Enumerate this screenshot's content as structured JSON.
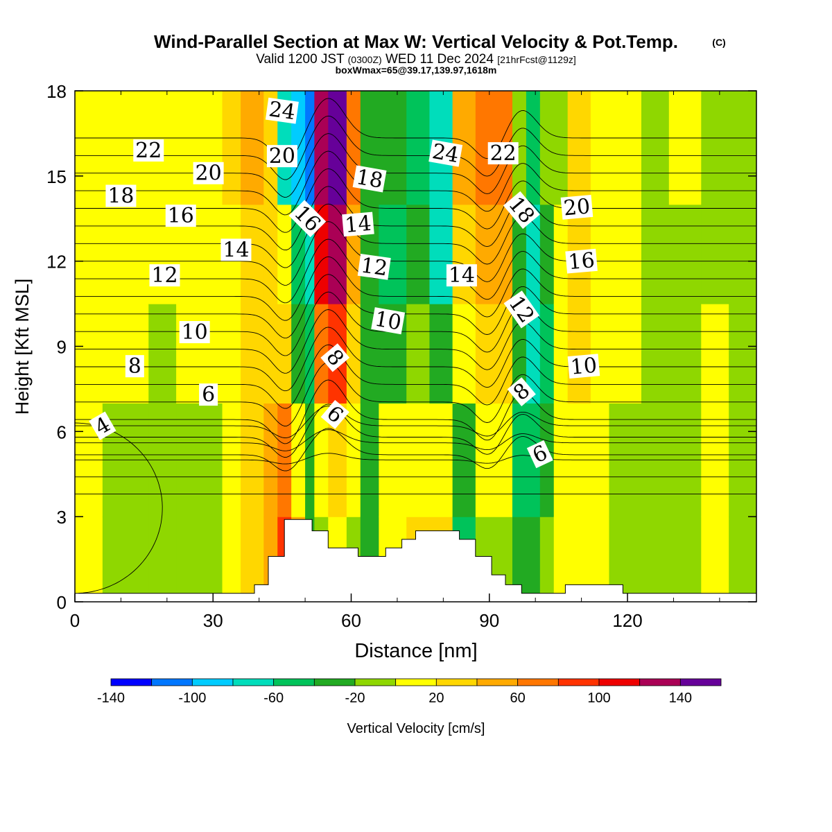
{
  "header": {
    "title": "Wind-Parallel Section at Max W: Vertical Velocity & Pot.Temp.",
    "copyright": "(C)",
    "valid_prefix": "Valid 1200 JST",
    "valid_utc": "(0300Z)",
    "valid_date": "WED 11 Dec 2024",
    "forecast": "[21hrFcst@1129z]",
    "box_info": "boxWmax=65@39.17,139.97,1618m"
  },
  "chart_data": {
    "type": "heatmap",
    "xlabel": "Distance [nm]",
    "ylabel": "Height [Kft MSL]",
    "xlim": [
      0,
      148
    ],
    "ylim": [
      0,
      18
    ],
    "x_ticks": [
      "0",
      "30",
      "60",
      "90",
      "120"
    ],
    "x_tick_values": [
      0,
      30,
      60,
      90,
      120
    ],
    "y_ticks": [
      "0",
      "3",
      "6",
      "9",
      "12",
      "15",
      "18"
    ],
    "y_tick_values": [
      0,
      3,
      6,
      9,
      12,
      15,
      18
    ],
    "colorbar": {
      "label": "Vertical Velocity [cm/s]",
      "bounds": [
        -140,
        -120,
        -100,
        -80,
        -60,
        -40,
        -20,
        0,
        20,
        40,
        60,
        80,
        100,
        120,
        140,
        160
      ],
      "tick_labels": [
        "-140",
        "-100",
        "-60",
        "-20",
        "20",
        "60",
        "100",
        "140"
      ],
      "tick_values": [
        -140,
        -100,
        -60,
        -20,
        20,
        60,
        100,
        140
      ],
      "colors": [
        "#0000ff",
        "#0077ff",
        "#00ccff",
        "#00ddbb",
        "#00c35a",
        "#22aa22",
        "#8fd700",
        "#ffff00",
        "#ffd700",
        "#ffaa00",
        "#ff7700",
        "#ff3300",
        "#ee0000",
        "#aa0055",
        "#660099"
      ]
    },
    "columns": [
      {
        "x0": 0,
        "x1": 6,
        "w": [
          10,
          0,
          0,
          10,
          10
        ]
      },
      {
        "x0": 6,
        "x1": 16,
        "w": [
          -10,
          -10,
          10,
          10,
          10
        ]
      },
      {
        "x0": 16,
        "x1": 22,
        "w": [
          -10,
          -10,
          -10,
          10,
          10
        ]
      },
      {
        "x0": 22,
        "x1": 32,
        "w": [
          -10,
          -10,
          10,
          10,
          10
        ]
      },
      {
        "x0": 32,
        "x1": 36,
        "w": [
          10,
          10,
          10,
          10,
          30
        ]
      },
      {
        "x0": 36,
        "x1": 41,
        "w": [
          30,
          30,
          30,
          30,
          50
        ]
      },
      {
        "x0": 41,
        "x1": 44,
        "w": [
          50,
          50,
          30,
          30,
          30
        ]
      },
      {
        "x0": 44,
        "x1": 47,
        "w": [
          90,
          70,
          30,
          10,
          -70
        ]
      },
      {
        "x0": 47,
        "x1": 50,
        "w": [
          50,
          10,
          -30,
          -50,
          -90
        ]
      },
      {
        "x0": 50,
        "x1": 52,
        "w": [
          -30,
          -30,
          -50,
          -70,
          -110
        ]
      },
      {
        "x0": 52,
        "x1": 55,
        "w": [
          -10,
          10,
          70,
          110,
          130
        ]
      },
      {
        "x0": 55,
        "x1": 59,
        "w": [
          10,
          30,
          90,
          130,
          150
        ]
      },
      {
        "x0": 59,
        "x1": 62,
        "w": [
          -10,
          10,
          30,
          50,
          70
        ]
      },
      {
        "x0": 62,
        "x1": 66,
        "w": [
          -30,
          -30,
          -30,
          -30,
          -30
        ]
      },
      {
        "x0": 66,
        "x1": 72,
        "w": [
          10,
          10,
          -30,
          -50,
          -30
        ]
      },
      {
        "x0": 72,
        "x1": 77,
        "w": [
          30,
          10,
          -10,
          -30,
          -50
        ]
      },
      {
        "x0": 77,
        "x1": 82,
        "w": [
          30,
          10,
          -30,
          -70,
          -70
        ]
      },
      {
        "x0": 82,
        "x1": 87,
        "w": [
          -50,
          -30,
          10,
          30,
          50
        ]
      },
      {
        "x0": 87,
        "x1": 91,
        "w": [
          -10,
          10,
          30,
          50,
          70
        ]
      },
      {
        "x0": 91,
        "x1": 95,
        "w": [
          -10,
          10,
          30,
          50,
          70
        ]
      },
      {
        "x0": 95,
        "x1": 98,
        "w": [
          -30,
          -50,
          -30,
          -30,
          -10
        ]
      },
      {
        "x0": 98,
        "x1": 101,
        "w": [
          -30,
          -50,
          -70,
          -70,
          -50
        ]
      },
      {
        "x0": 101,
        "x1": 104,
        "w": [
          -10,
          -30,
          -50,
          -30,
          -10
        ]
      },
      {
        "x0": 104,
        "x1": 107,
        "w": [
          10,
          10,
          10,
          10,
          -10
        ]
      },
      {
        "x0": 107,
        "x1": 112,
        "w": [
          10,
          10,
          30,
          30,
          30
        ]
      },
      {
        "x0": 112,
        "x1": 116,
        "w": [
          10,
          10,
          10,
          10,
          10
        ]
      },
      {
        "x0": 116,
        "x1": 123,
        "w": [
          -10,
          -10,
          10,
          10,
          10
        ]
      },
      {
        "x0": 123,
        "x1": 129,
        "w": [
          -10,
          -10,
          -10,
          -10,
          -10
        ]
      },
      {
        "x0": 129,
        "x1": 136,
        "w": [
          -10,
          -10,
          -10,
          -10,
          10
        ]
      },
      {
        "x0": 136,
        "x1": 142,
        "w": [
          10,
          10,
          10,
          -10,
          -10
        ]
      },
      {
        "x0": 142,
        "x1": 148,
        "w": [
          -10,
          -10,
          -10,
          -10,
          -10
        ]
      }
    ],
    "band_heights": [
      0,
      3,
      7,
      10.5,
      14,
      18
    ],
    "terrain": [
      [
        0,
        0.3
      ],
      [
        39,
        0.3
      ],
      [
        39,
        0.6
      ],
      [
        42,
        0.6
      ],
      [
        42,
        1.6
      ],
      [
        45.5,
        1.6
      ],
      [
        45.5,
        2.9
      ],
      [
        51.5,
        2.9
      ],
      [
        51.5,
        2.5
      ],
      [
        55,
        2.5
      ],
      [
        55,
        1.9
      ],
      [
        61.5,
        1.9
      ],
      [
        61.5,
        1.6
      ],
      [
        67.5,
        1.6
      ],
      [
        67.5,
        1.9
      ],
      [
        71,
        1.9
      ],
      [
        71,
        2.2
      ],
      [
        74,
        2.2
      ],
      [
        74,
        2.5
      ],
      [
        83.5,
        2.5
      ],
      [
        83.5,
        2.2
      ],
      [
        87,
        2.2
      ],
      [
        87,
        1.6
      ],
      [
        90.5,
        1.6
      ],
      [
        90.5,
        0.95
      ],
      [
        93.5,
        0.95
      ],
      [
        93.5,
        0.6
      ],
      [
        97,
        0.6
      ],
      [
        97,
        0.3
      ],
      [
        106.5,
        0.3
      ],
      [
        106.5,
        0.6
      ],
      [
        119,
        0.6
      ],
      [
        119,
        0.3
      ],
      [
        148,
        0.3
      ]
    ],
    "theta_contours": {
      "levels": [
        4,
        5,
        6,
        7,
        8,
        9,
        10,
        11,
        12,
        13,
        14,
        15,
        16,
        17,
        18,
        19,
        20,
        21,
        22,
        23,
        24,
        25,
        26,
        27
      ],
      "labels": [
        {
          "text": "4",
          "x": 6,
          "y": 6.2,
          "angle": -30
        },
        {
          "text": "6",
          "x": 29,
          "y": 7.3,
          "angle": 0
        },
        {
          "text": "8",
          "x": 13,
          "y": 8.3,
          "angle": 0
        },
        {
          "text": "10",
          "x": 26,
          "y": 9.5,
          "angle": 0
        },
        {
          "text": "12",
          "x": 19.5,
          "y": 11.5,
          "angle": 0
        },
        {
          "text": "14",
          "x": 35,
          "y": 12.4,
          "angle": 0
        },
        {
          "text": "16",
          "x": 23,
          "y": 13.6,
          "angle": 0
        },
        {
          "text": "18",
          "x": 10,
          "y": 14.3,
          "angle": 0
        },
        {
          "text": "20",
          "x": 29,
          "y": 15.1,
          "angle": 0
        },
        {
          "text": "22",
          "x": 16,
          "y": 15.9,
          "angle": 0
        },
        {
          "text": "20",
          "x": 45,
          "y": 15.7,
          "angle": 0
        },
        {
          "text": "24",
          "x": 45,
          "y": 17.3,
          "angle": 8
        },
        {
          "text": "16",
          "x": 50.5,
          "y": 13.5,
          "angle": 45
        },
        {
          "text": "6",
          "x": 56.5,
          "y": 6.6,
          "angle": 40
        },
        {
          "text": "8",
          "x": 56.5,
          "y": 8.6,
          "angle": 50
        },
        {
          "text": "10",
          "x": 68,
          "y": 9.9,
          "angle": 10
        },
        {
          "text": "12",
          "x": 65,
          "y": 11.8,
          "angle": 8
        },
        {
          "text": "14",
          "x": 61.5,
          "y": 13.3,
          "angle": -5
        },
        {
          "text": "18",
          "x": 64,
          "y": 14.9,
          "angle": 10
        },
        {
          "text": "24",
          "x": 80.5,
          "y": 15.8,
          "angle": 10
        },
        {
          "text": "22",
          "x": 93,
          "y": 15.8,
          "angle": 0
        },
        {
          "text": "14",
          "x": 84,
          "y": 11.5,
          "angle": 0
        },
        {
          "text": "18",
          "x": 97,
          "y": 13.8,
          "angle": 50
        },
        {
          "text": "12",
          "x": 97,
          "y": 10.3,
          "angle": 55
        },
        {
          "text": "8",
          "x": 97,
          "y": 7.4,
          "angle": -40
        },
        {
          "text": "6",
          "x": 101,
          "y": 5.2,
          "angle": -25
        },
        {
          "text": "20",
          "x": 109,
          "y": 13.9,
          "angle": -5
        },
        {
          "text": "16",
          "x": 110,
          "y": 12.0,
          "angle": -5
        },
        {
          "text": "10",
          "x": 110.5,
          "y": 8.3,
          "angle": -5
        }
      ]
    }
  }
}
